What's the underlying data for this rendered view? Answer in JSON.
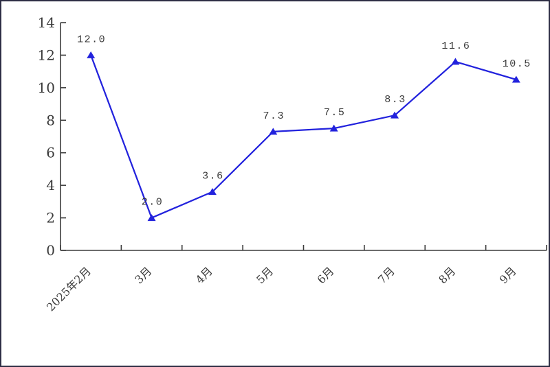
{
  "frame": {
    "background": "#ffffff",
    "border_color": "#2e2e45"
  },
  "chart_data": {
    "type": "line",
    "title": "",
    "xlabel": "",
    "ylabel": "",
    "categories": [
      "2025年2月",
      "3月",
      "4月",
      "5月",
      "6月",
      "7月",
      "8月",
      "9月"
    ],
    "series": [
      {
        "name": "",
        "values": [
          12.0,
          2.0,
          3.6,
          7.3,
          7.5,
          8.3,
          11.6,
          10.5
        ]
      }
    ],
    "point_labels": [
      "12.0",
      "2.0",
      "3.6",
      "7.3",
      "7.5",
      "8.3",
      "11.6",
      "10.5"
    ],
    "ylim": [
      0,
      14
    ],
    "ytick_step": 2,
    "ytick_labels": [
      "0",
      "2",
      "4",
      "6",
      "8",
      "10",
      "12",
      "14"
    ],
    "grid": false,
    "legend": "none",
    "marker": "triangle",
    "line_color": "#2222DD",
    "marker_color": "#2222DD",
    "point_label_color": "#3a3a3a",
    "tick_label_color": "#3a3a3a",
    "axis_color": "#3c3c3c"
  }
}
